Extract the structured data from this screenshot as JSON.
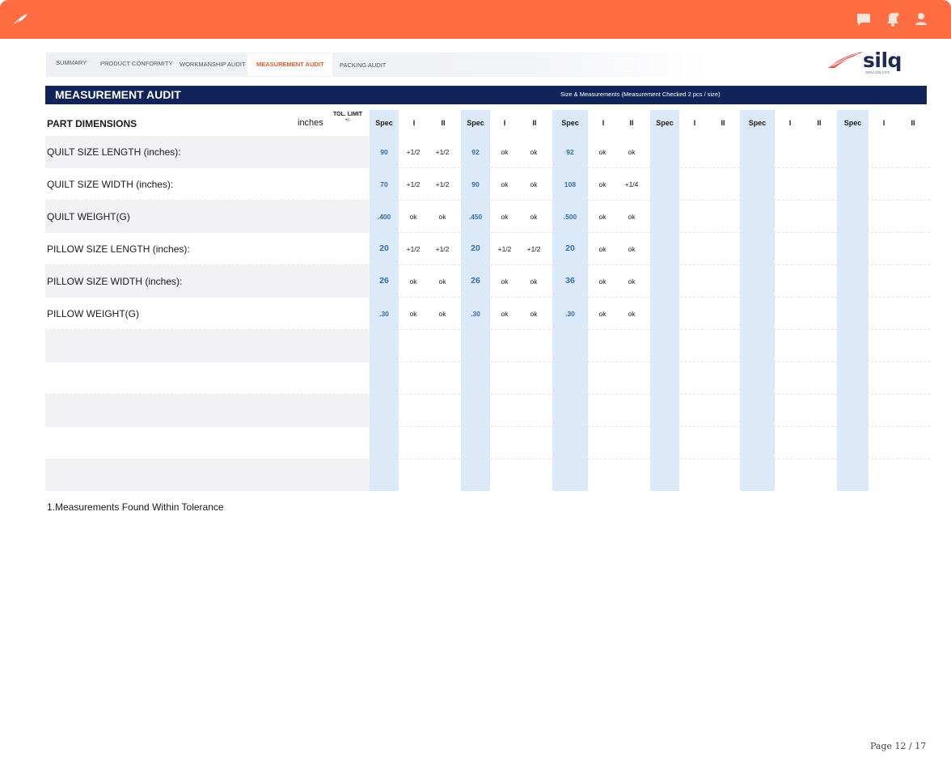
{
  "colors": {
    "topbar": "#ff6e43",
    "banner": "#112459",
    "spec_column": "#dce9f8",
    "spec_value": "#2f6fb2",
    "active_tab": "#e05a2b"
  },
  "topbar": {
    "icons": [
      "feather-logo-icon",
      "chat-icon",
      "notification-bell-icon",
      "user-icon"
    ]
  },
  "tabs": [
    {
      "label": "SUMMARY",
      "active": false
    },
    {
      "label": "PRODUCT CONFORMITY",
      "active": false
    },
    {
      "label": "WORKMANSHIP AUDIT",
      "active": false
    },
    {
      "label": "MEASUREMENT AUDIT",
      "active": true
    },
    {
      "label": "PACKING AUDIT",
      "active": false
    }
  ],
  "logo": {
    "text": "silq",
    "url": "www.silq.com"
  },
  "banner": {
    "title": "MEASUREMENT AUDIT",
    "subtitle": "Size & Measurements  (Measurement Checked 2 pcs / size)"
  },
  "table": {
    "header": {
      "part": "PART DIMENSIONS",
      "unit": "inches",
      "tol_limit": "TOL. LIMIT",
      "tol_sign": "+/-"
    },
    "size_groups": [
      {
        "spec": "Spec",
        "c1": "I",
        "c2": "II"
      },
      {
        "spec": "Spec",
        "c1": "I",
        "c2": "II"
      },
      {
        "spec": "Spec",
        "c1": "I",
        "c2": "II"
      },
      {
        "spec": "Spec",
        "c1": "I",
        "c2": "II"
      },
      {
        "spec": "Spec",
        "c1": "I",
        "c2": "II"
      },
      {
        "spec": "Spec",
        "c1": "I",
        "c2": "II"
      }
    ],
    "rows": [
      {
        "label": "QUILT SIZE  LENGTH (inches):",
        "values": [
          [
            "90",
            "+1/2",
            "+1/2"
          ],
          [
            "92",
            "ok",
            "ok"
          ],
          [
            "92",
            "ok",
            "ok"
          ]
        ]
      },
      {
        "label": "QUILT SIZE WIDTH  (inches):",
        "values": [
          [
            "70",
            "+1/2",
            "+1/2"
          ],
          [
            "90",
            "ok",
            "ok"
          ],
          [
            "108",
            "ok",
            "+1/4"
          ]
        ]
      },
      {
        "label": "QUILT WEIGHT(G)",
        "values": [
          [
            ".400",
            "ok",
            "ok"
          ],
          [
            ".450",
            "ok",
            "ok"
          ],
          [
            ".500",
            "ok",
            "ok"
          ]
        ]
      },
      {
        "label": "PILLOW  SIZE   LENGTH (inches):",
        "values": [
          [
            "20",
            "+1/2",
            "+1/2"
          ],
          [
            "20",
            "+1/2",
            "+1/2"
          ],
          [
            "20",
            "ok",
            "ok"
          ]
        ]
      },
      {
        "label": "PILLOW  SIZE   WIDTH  (inches):",
        "values": [
          [
            "26",
            "ok",
            "ok"
          ],
          [
            "26",
            "ok",
            "ok"
          ],
          [
            "36",
            "ok",
            "ok"
          ]
        ]
      },
      {
        "label": "PILLOW WEIGHT(G)",
        "values": [
          [
            ".30",
            "ok",
            "ok"
          ],
          [
            ".30",
            "ok",
            "ok"
          ],
          [
            ".30",
            "ok",
            "ok"
          ]
        ]
      },
      {
        "label": "",
        "values": []
      },
      {
        "label": "",
        "values": []
      },
      {
        "label": "",
        "values": []
      },
      {
        "label": "",
        "values": []
      },
      {
        "label": "",
        "values": []
      }
    ]
  },
  "note": "1.Measurements Found Within Tolerance",
  "pagination": {
    "text": "Page  12  /  17"
  }
}
